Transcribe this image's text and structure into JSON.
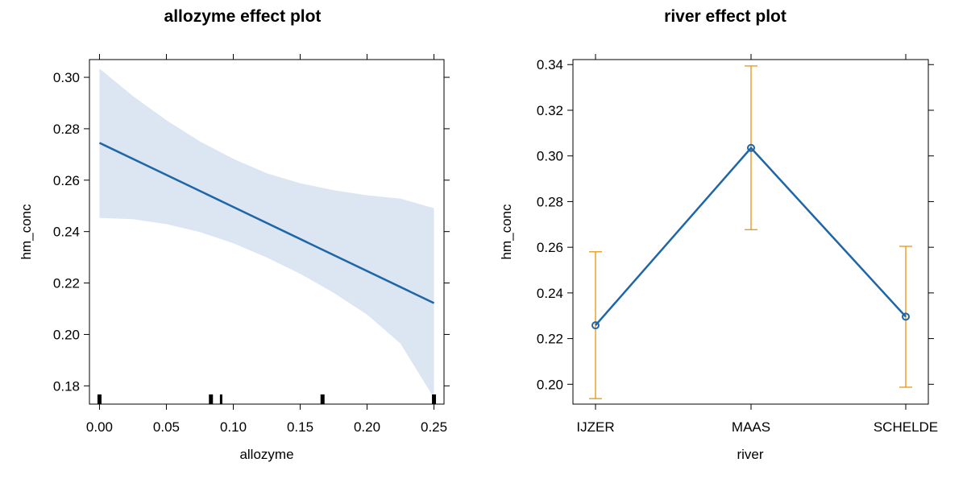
{
  "chart_data": [
    {
      "type": "line",
      "title": "allozyme effect plot",
      "xlabel": "allozyme",
      "ylabel": "hm_conc",
      "xlim": [
        -0.0075,
        0.2575
      ],
      "ylim": [
        0.1729,
        0.3069
      ],
      "xticks": [
        0.0,
        0.05,
        0.1,
        0.15,
        0.2,
        0.25
      ],
      "xtick_labels": [
        "0.00",
        "0.05",
        "0.10",
        "0.15",
        "0.20",
        "0.25"
      ],
      "yticks": [
        0.18,
        0.2,
        0.22,
        0.24,
        0.26,
        0.28,
        0.3
      ],
      "ytick_labels": [
        "0.18",
        "0.20",
        "0.22",
        "0.24",
        "0.26",
        "0.28",
        "0.30"
      ],
      "line_color": "#1f66a8",
      "band_color": "#dbe6f2",
      "fit": {
        "x": [
          0.0,
          0.25
        ],
        "y": [
          0.2745,
          0.2122
        ]
      },
      "band": {
        "x": [
          0.0,
          0.025,
          0.05,
          0.075,
          0.1,
          0.125,
          0.15,
          0.175,
          0.2,
          0.225,
          0.25
        ],
        "upper": [
          0.3034,
          0.2927,
          0.2833,
          0.2751,
          0.2683,
          0.2627,
          0.2588,
          0.2561,
          0.2541,
          0.2528,
          0.2491
        ],
        "lower": [
          0.2453,
          0.2448,
          0.2429,
          0.2398,
          0.2355,
          0.2299,
          0.2236,
          0.2162,
          0.2077,
          0.1964,
          0.1753
        ]
      },
      "rug": [
        0.0,
        0.0833,
        0.0909,
        0.1667,
        0.25
      ]
    },
    {
      "type": "line",
      "title": "river effect plot",
      "xlabel": "river",
      "ylabel": "hm_conc",
      "ylim": [
        0.1913,
        0.3422
      ],
      "categories": [
        "IJZER",
        "MAAS",
        "SCHELDE"
      ],
      "yticks": [
        0.2,
        0.22,
        0.24,
        0.26,
        0.28,
        0.3,
        0.32,
        0.34
      ],
      "ytick_labels": [
        "0.20",
        "0.22",
        "0.24",
        "0.26",
        "0.28",
        "0.30",
        "0.32",
        "0.34"
      ],
      "line_color": "#1f66a8",
      "errorbar_color": "#e8950f",
      "values": [
        0.2258,
        0.3035,
        0.2296
      ],
      "lower": [
        0.1937,
        0.2677,
        0.1987
      ],
      "upper": [
        0.258,
        0.3394,
        0.2604
      ]
    }
  ]
}
